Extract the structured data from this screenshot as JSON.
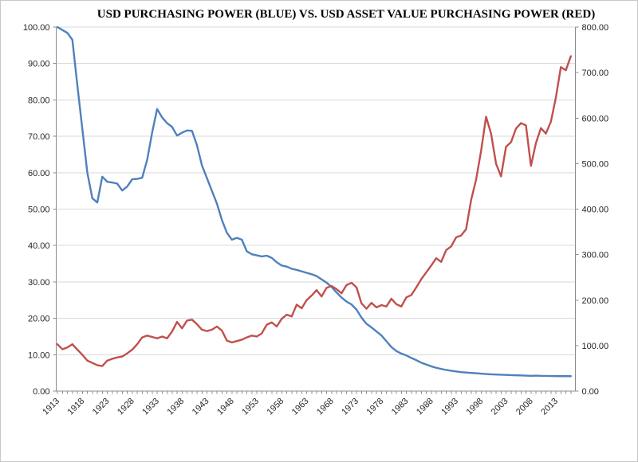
{
  "chart_data": {
    "type": "line",
    "title": "USD PURCHASING POWER (BLUE) VS. USD ASSET VALUE PURCHASING POWER (RED)",
    "grid": "horizontal",
    "legend": "none",
    "x_axis": {
      "tick_years": [
        1913,
        1918,
        1923,
        1928,
        1933,
        1938,
        1943,
        1948,
        1953,
        1958,
        1963,
        1968,
        1973,
        1978,
        1983,
        1988,
        1993,
        1998,
        2003,
        2008,
        2013
      ],
      "tick_labels": [
        "1913",
        "1918",
        "1923",
        "1928",
        "1933",
        "1938",
        "1943",
        "1948",
        "1953",
        "1958",
        "1963",
        "1968",
        "1973",
        "1978",
        "1983",
        "1988",
        "1993",
        "1998",
        "2003",
        "2008",
        "2013"
      ],
      "minor_tick_every_year": true,
      "label_rotation_deg": 45
    },
    "left_axis": {
      "min": 0,
      "max": 100,
      "step": 10,
      "tick_labels": [
        "0.00",
        "10.00",
        "20.00",
        "30.00",
        "40.00",
        "50.00",
        "60.00",
        "70.00",
        "80.00",
        "90.00",
        "100.00"
      ]
    },
    "right_axis": {
      "min": 0,
      "max": 800,
      "step": 100,
      "tick_labels": [
        "0.00",
        "100.00",
        "200.00",
        "300.00",
        "400.00",
        "500.00",
        "600.00",
        "700.00",
        "800.00"
      ]
    },
    "years": [
      1913,
      1914,
      1915,
      1916,
      1917,
      1918,
      1919,
      1920,
      1921,
      1922,
      1923,
      1924,
      1925,
      1926,
      1927,
      1928,
      1929,
      1930,
      1931,
      1932,
      1933,
      1934,
      1935,
      1936,
      1937,
      1938,
      1939,
      1940,
      1941,
      1942,
      1943,
      1944,
      1945,
      1946,
      1947,
      1948,
      1949,
      1950,
      1951,
      1952,
      1953,
      1954,
      1955,
      1956,
      1957,
      1958,
      1959,
      1960,
      1961,
      1962,
      1963,
      1964,
      1965,
      1966,
      1967,
      1968,
      1969,
      1970,
      1971,
      1972,
      1973,
      1974,
      1975,
      1976,
      1977,
      1978,
      1979,
      1980,
      1981,
      1982,
      1983,
      1984,
      1985,
      1986,
      1987,
      1988,
      1989,
      1990,
      1991,
      1992,
      1993,
      1994,
      1995,
      1996,
      1997,
      1998,
      1999,
      2000,
      2001,
      2002,
      2003,
      2004,
      2005,
      2006,
      2007,
      2008,
      2009,
      2010,
      2011,
      2012,
      2013,
      2014,
      2015,
      2016
    ],
    "series": [
      {
        "name": "USD Purchasing Power",
        "color": "#4F81BD",
        "axis": "left",
        "values": [
          100,
          99.2,
          98.4,
          96.5,
          84,
          72,
          60,
          53,
          51.8,
          58.9,
          57.5,
          57.3,
          57,
          55.1,
          56.2,
          58.2,
          58.3,
          58.6,
          63.5,
          71,
          77.5,
          75.2,
          73.6,
          72.6,
          70.2,
          71,
          71.6,
          71.5,
          67.5,
          62,
          58.5,
          55,
          51.5,
          47,
          43.5,
          41.6,
          42.1,
          41.6,
          38.4,
          37.6,
          37.3,
          37,
          37.2,
          36.6,
          35.4,
          34.5,
          34.2,
          33.6,
          33.3,
          32.9,
          32.5,
          32.1,
          31.6,
          30.7,
          29.8,
          28.6,
          27.1,
          25.7,
          24.6,
          23.8,
          22.4,
          20.2,
          18.5,
          17.5,
          16.4,
          15.3,
          13.7,
          12.1,
          11,
          10.3,
          9.8,
          9.1,
          8.5,
          7.8,
          7.3,
          6.8,
          6.4,
          6.1,
          5.8,
          5.6,
          5.4,
          5.2,
          5.1,
          5,
          4.9,
          4.8,
          4.7,
          4.6,
          4.55,
          4.5,
          4.45,
          4.4,
          4.35,
          4.3,
          4.25,
          4.2,
          4.25,
          4.2,
          4.18,
          4.15,
          4.12,
          4.1,
          4.1,
          4.1
        ]
      },
      {
        "name": "USD Asset Value Purchasing Power",
        "color": "#C0504D",
        "axis": "right",
        "values": [
          103,
          92,
          96,
          103,
          91,
          80,
          67,
          62,
          57,
          55,
          67,
          71,
          74,
          76,
          83,
          91,
          103,
          118,
          122,
          119,
          116,
          120,
          116,
          131,
          152,
          138,
          155,
          157,
          147,
          135,
          132,
          135,
          142,
          133,
          111,
          107,
          110,
          113,
          118,
          122,
          120,
          127,
          146,
          151,
          142,
          159,
          168,
          164,
          190,
          182,
          200,
          210,
          222,
          208,
          227,
          231,
          224,
          215,
          233,
          238,
          228,
          193,
          181,
          194,
          184,
          189,
          186,
          203,
          191,
          186,
          206,
          211,
          228,
          246,
          261,
          276,
          292,
          284,
          310,
          318,
          338,
          342,
          356,
          420,
          465,
          528,
          603,
          566,
          500,
          472,
          537,
          547,
          577,
          589,
          584,
          495,
          545,
          578,
          566,
          592,
          645,
          712,
          705,
          736
        ]
      }
    ],
    "colors": {
      "gridline": "#D9D9D9",
      "axis_line": "#8C8C8C",
      "tick_text": "#262626",
      "title_text": "#000000",
      "background": "#FFFFFF"
    }
  }
}
